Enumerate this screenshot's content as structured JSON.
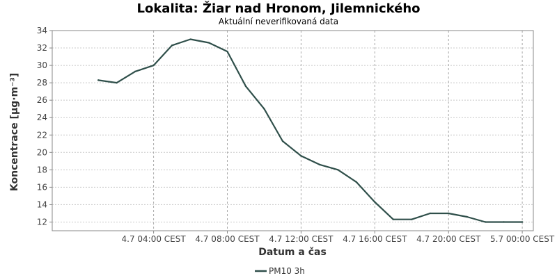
{
  "chart_data": {
    "type": "line",
    "title": "Lokalita: Žiar nad Hronom, Jilemnického",
    "subtitle": "Aktuální neverifikovaná data",
    "xlabel": "Datum a čas",
    "ylabel": "Koncentrace [µg·m⁻³]",
    "x_unit": "hours from 4.7 00:00 CEST",
    "ylim": [
      11,
      34
    ],
    "xlim": [
      -1.5,
      24.6
    ],
    "y_ticks": [
      12,
      14,
      16,
      18,
      20,
      22,
      24,
      26,
      28,
      30,
      32,
      34
    ],
    "x_ticks": [
      {
        "x": 4,
        "label": "4.7 04:00 CEST"
      },
      {
        "x": 8,
        "label": "4.7 08:00 CEST"
      },
      {
        "x": 12,
        "label": "4.7 12:00 CEST"
      },
      {
        "x": 16,
        "label": "4.7 16:00 CEST"
      },
      {
        "x": 20,
        "label": "4.7 20:00 CEST"
      },
      {
        "x": 24,
        "label": "5.7 00:00 CEST"
      }
    ],
    "grid": true,
    "legend_position": "bottom-center",
    "series": [
      {
        "name": "PM10 3h",
        "color": "#2f4f4a",
        "x": [
          1,
          2,
          3,
          4,
          5,
          6,
          7,
          8,
          9,
          10,
          11,
          12,
          13,
          14,
          15,
          16,
          17,
          18,
          19,
          20,
          21,
          22,
          23,
          24
        ],
        "values": [
          28.3,
          28.0,
          29.3,
          30.0,
          32.3,
          33.0,
          32.6,
          31.6,
          27.6,
          25.0,
          21.3,
          19.6,
          18.6,
          18.0,
          16.6,
          14.3,
          12.3,
          12.3,
          13.0,
          13.0,
          12.6,
          12.0,
          12.0,
          12.0
        ]
      }
    ]
  }
}
